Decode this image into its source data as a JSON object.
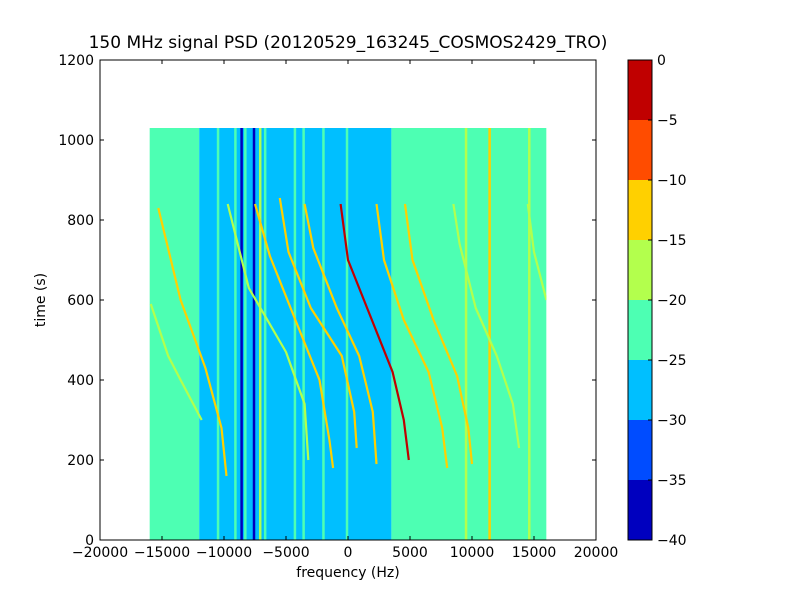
{
  "chart_data": {
    "type": "heatmap",
    "title": "150 MHz signal PSD (20120529_163245_COSMOS2429_TRO)",
    "xlabel": "frequency (Hz)",
    "ylabel": "time (s)",
    "xlim": [
      -20000,
      20000
    ],
    "ylim": [
      0,
      1200
    ],
    "xticks": [
      -20000,
      -15000,
      -10000,
      -5000,
      0,
      5000,
      10000,
      15000,
      20000
    ],
    "xtick_labels": [
      "−20000",
      "−15000",
      "−10000",
      "−5000",
      "0",
      "5000",
      "10000",
      "15000",
      "20000"
    ],
    "yticks": [
      0,
      200,
      400,
      600,
      800,
      1000,
      1200
    ],
    "ytick_labels": [
      "0",
      "200",
      "400",
      "600",
      "800",
      "1000",
      "1200"
    ],
    "data_extent": {
      "x": [
        -16000,
        16000
      ],
      "y": [
        0,
        1030
      ]
    },
    "colorbar": {
      "range": [
        -40,
        0
      ],
      "levels": [
        -40,
        -35,
        -30,
        -25,
        -20,
        -15,
        -10,
        -5,
        0
      ],
      "tick_labels": [
        "−40",
        "−35",
        "−30",
        "−25",
        "−20",
        "−15",
        "−10",
        "−5",
        "0"
      ],
      "colors": [
        "#0000bf",
        "#004cff",
        "#00bfff",
        "#4dffb3",
        "#b3ff4d",
        "#ffd000",
        "#ff4c00",
        "#c00000"
      ]
    },
    "background_regions": [
      {
        "x": [
          -16000,
          -12000
        ],
        "level": -22,
        "color": "#4dffb3"
      },
      {
        "x": [
          -12000,
          3500
        ],
        "level": -27,
        "color": "#00bfff"
      },
      {
        "x": [
          3500,
          16000
        ],
        "level": -22,
        "color": "#4dffb3"
      }
    ],
    "vertical_lines": [
      {
        "x": -10500,
        "color": "#4dffb3"
      },
      {
        "x": -9100,
        "color": "#4dffb3"
      },
      {
        "x": -8600,
        "color": "#0000bf"
      },
      {
        "x": -8300,
        "color": "#4dffb3"
      },
      {
        "x": -7600,
        "color": "#0000bf"
      },
      {
        "x": -7100,
        "color": "#b3ff4d"
      },
      {
        "x": -6700,
        "color": "#4dffb3"
      },
      {
        "x": -4300,
        "color": "#4dffb3"
      },
      {
        "x": -3600,
        "color": "#4dffb3"
      },
      {
        "x": -2000,
        "color": "#4dffb3"
      },
      {
        "x": -100,
        "color": "#4dffb3"
      },
      {
        "x": 9500,
        "color": "#b3ff4d"
      },
      {
        "x": 11400,
        "color": "#ffd000"
      },
      {
        "x": 14600,
        "color": "#b3ff4d"
      }
    ],
    "series": [
      {
        "color": "#ffd000",
        "points": [
          [
            -15300,
            830
          ],
          [
            -13500,
            600
          ],
          [
            -11500,
            430
          ],
          [
            -10200,
            280
          ],
          [
            -9800,
            160
          ]
        ]
      },
      {
        "color": "#b3ff4d",
        "points": [
          [
            -15900,
            590
          ],
          [
            -14500,
            460
          ],
          [
            -13500,
            400
          ],
          [
            -11800,
            300
          ]
        ]
      },
      {
        "color": "#b3ff4d",
        "points": [
          [
            -9700,
            840
          ],
          [
            -8000,
            630
          ],
          [
            -5000,
            470
          ],
          [
            -3500,
            340
          ],
          [
            -3200,
            200
          ]
        ]
      },
      {
        "color": "#ffd000",
        "points": [
          [
            -7500,
            840
          ],
          [
            -6300,
            710
          ],
          [
            -4500,
            570
          ],
          [
            -2300,
            400
          ],
          [
            -1500,
            250
          ],
          [
            -1200,
            180
          ]
        ]
      },
      {
        "color": "#ffd000",
        "points": [
          [
            -5500,
            855
          ],
          [
            -4800,
            720
          ],
          [
            -3000,
            580
          ],
          [
            -500,
            460
          ],
          [
            500,
            320
          ],
          [
            700,
            230
          ]
        ]
      },
      {
        "color": "#ffd000",
        "points": [
          [
            -3500,
            840
          ],
          [
            -2800,
            730
          ],
          [
            -900,
            580
          ],
          [
            900,
            460
          ],
          [
            2000,
            320
          ],
          [
            2300,
            190
          ]
        ]
      },
      {
        "color": "#c00000",
        "points": [
          [
            -600,
            840
          ],
          [
            0,
            700
          ],
          [
            1800,
            560
          ],
          [
            3600,
            420
          ],
          [
            4500,
            300
          ],
          [
            4900,
            200
          ]
        ]
      },
      {
        "color": "#ffd000",
        "points": [
          [
            2300,
            840
          ],
          [
            2900,
            700
          ],
          [
            4500,
            550
          ],
          [
            6500,
            420
          ],
          [
            7600,
            280
          ],
          [
            8000,
            180
          ]
        ]
      },
      {
        "color": "#ffd000",
        "points": [
          [
            4600,
            840
          ],
          [
            5200,
            700
          ],
          [
            6900,
            550
          ],
          [
            8800,
            410
          ],
          [
            9700,
            280
          ],
          [
            10000,
            190
          ]
        ]
      },
      {
        "color": "#b3ff4d",
        "points": [
          [
            8500,
            840
          ],
          [
            9000,
            740
          ],
          [
            10300,
            580
          ],
          [
            12000,
            460
          ],
          [
            13300,
            340
          ],
          [
            13800,
            230
          ]
        ]
      },
      {
        "color": "#b3ff4d",
        "points": [
          [
            14500,
            840
          ],
          [
            15000,
            720
          ],
          [
            16000,
            600
          ]
        ]
      }
    ]
  }
}
